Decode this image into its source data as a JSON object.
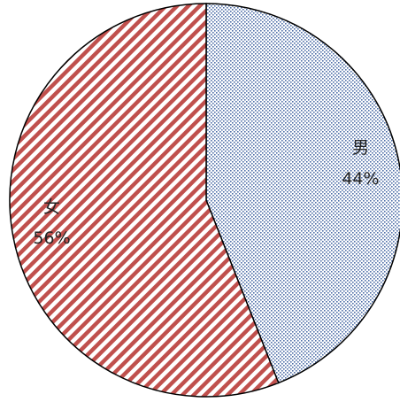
{
  "chart_data": {
    "type": "pie",
    "categories": [
      "男",
      "女"
    ],
    "values": [
      44,
      56
    ],
    "value_labels": [
      "44%",
      "56%"
    ],
    "colors": [
      "#4f6fa8",
      "#c0504d"
    ]
  }
}
